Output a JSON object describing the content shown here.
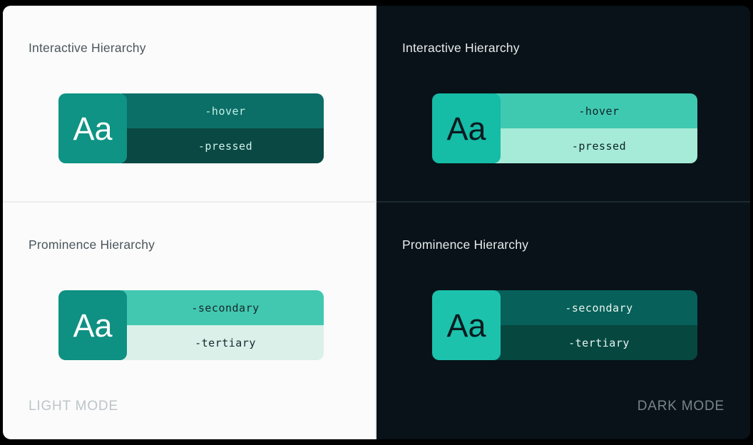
{
  "panels": [
    {
      "id": "light",
      "background": "#FBFBFB",
      "heading_color": "#4A565C",
      "mode_label": "LIGHT MODE",
      "mode_label_color": "#BDC4C8",
      "sections": [
        {
          "title": "Interactive Hierarchy",
          "swatch": {
            "label": "Aa",
            "bg": "#0E9384",
            "fg": "#FDFDFD"
          },
          "rows": [
            {
              "label": "-hover",
              "bg": "#0B6F67",
              "fg": "#C3EFE6"
            },
            {
              "label": "-pressed",
              "bg": "#0A4843",
              "fg": "#CEF2EA"
            }
          ]
        },
        {
          "title": "Prominence Hierarchy",
          "swatch": {
            "label": "Aa",
            "bg": "#0E9082",
            "fg": "#FDFDFD"
          },
          "rows": [
            {
              "label": "-secondary",
              "bg": "#42C8B1",
              "fg": "#15292B"
            },
            {
              "label": "-tertiary",
              "bg": "#DAF0E9",
              "fg": "#15292B"
            }
          ]
        }
      ]
    },
    {
      "id": "dark",
      "background": "#081218",
      "heading_color": "#E8EBEB",
      "mode_label": "DARK MODE",
      "mode_label_color": "#79838A",
      "sections": [
        {
          "title": "Interactive Hierarchy",
          "swatch": {
            "label": "Aa",
            "bg": "#15BCA6",
            "fg": "#0A1A20"
          },
          "rows": [
            {
              "label": "-hover",
              "bg": "#40C9B1",
              "fg": "#0E2326"
            },
            {
              "label": "-pressed",
              "bg": "#A6EBD7",
              "fg": "#0E2326"
            }
          ]
        },
        {
          "title": "Prominence Hierarchy",
          "swatch": {
            "label": "Aa",
            "bg": "#1CC2AC",
            "fg": "#0A1A20"
          },
          "rows": [
            {
              "label": "-secondary",
              "bg": "#076059",
              "fg": "#E8F5F1"
            },
            {
              "label": "-tertiary",
              "bg": "#064740",
              "fg": "#E8F5F1"
            }
          ]
        }
      ]
    }
  ]
}
